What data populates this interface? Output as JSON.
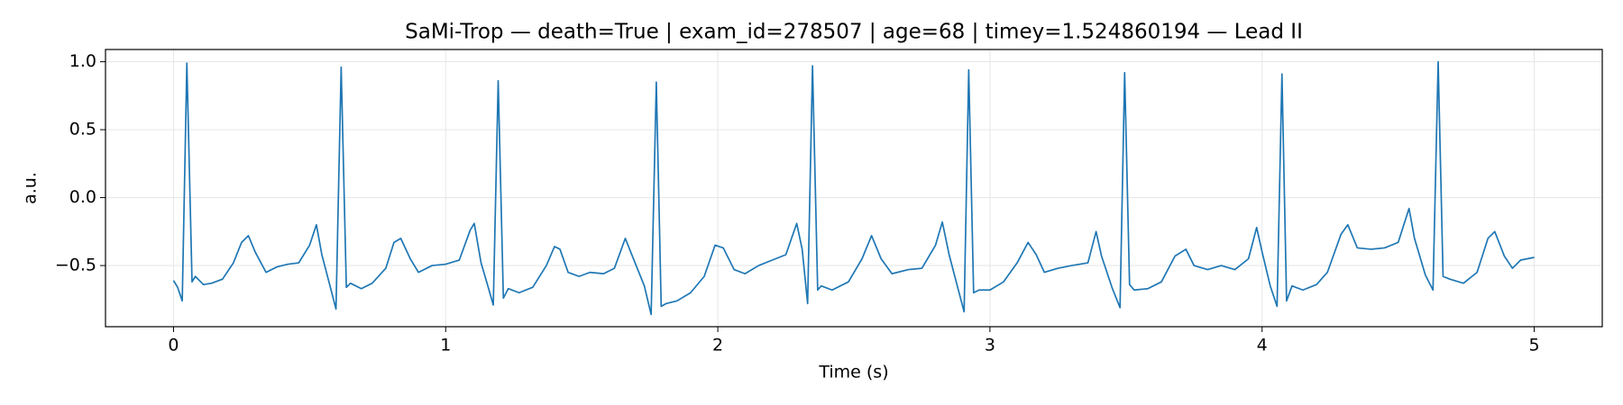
{
  "chart_data": {
    "type": "line",
    "title": "SaMi-Trop — death=True | exam_id=278507 | age=68 | timey=1.524860194 — Lead II",
    "x_label": "Time (s)",
    "y_label": "a.u.",
    "color": "#1f77b4",
    "grid": true,
    "xlim": [
      -0.25,
      5.25
    ],
    "ylim": [
      -0.95,
      1.09
    ],
    "xticks": [
      0,
      1,
      2,
      3,
      4,
      5
    ],
    "yticks": [
      {
        "value": -0.5,
        "label": "−0.5"
      },
      {
        "value": 0,
        "label": "0.0"
      },
      0.5,
      {
        "value": 1,
        "label": "1.0"
      }
    ],
    "x": [
      0.0,
      0.015,
      0.032,
      0.049,
      0.068,
      0.08,
      0.11,
      0.14,
      0.18,
      0.22,
      0.25,
      0.275,
      0.3,
      0.34,
      0.38,
      0.42,
      0.46,
      0.5,
      0.525,
      0.545,
      0.575,
      0.597,
      0.616,
      0.635,
      0.65,
      0.69,
      0.73,
      0.78,
      0.81,
      0.835,
      0.87,
      0.9,
      0.95,
      1.0,
      1.05,
      1.09,
      1.105,
      1.13,
      1.155,
      1.175,
      1.193,
      1.212,
      1.23,
      1.27,
      1.32,
      1.37,
      1.4,
      1.42,
      1.45,
      1.49,
      1.53,
      1.58,
      1.62,
      1.66,
      1.69,
      1.73,
      1.755,
      1.774,
      1.792,
      1.81,
      1.85,
      1.9,
      1.95,
      1.99,
      2.02,
      2.06,
      2.1,
      2.15,
      2.2,
      2.25,
      2.29,
      2.31,
      2.33,
      2.348,
      2.367,
      2.38,
      2.42,
      2.48,
      2.53,
      2.565,
      2.6,
      2.64,
      2.7,
      2.75,
      2.8,
      2.825,
      2.85,
      2.88,
      2.905,
      2.922,
      2.94,
      2.96,
      3.0,
      3.05,
      3.1,
      3.14,
      3.17,
      3.2,
      3.25,
      3.3,
      3.36,
      3.39,
      3.41,
      3.45,
      3.478,
      3.495,
      3.513,
      3.53,
      3.58,
      3.63,
      3.68,
      3.72,
      3.75,
      3.8,
      3.85,
      3.9,
      3.95,
      3.98,
      4.0,
      4.03,
      4.055,
      4.073,
      4.09,
      4.11,
      4.15,
      4.2,
      4.24,
      4.29,
      4.315,
      4.35,
      4.4,
      4.45,
      4.5,
      4.54,
      4.56,
      4.6,
      4.628,
      4.647,
      4.665,
      4.69,
      4.74,
      4.79,
      4.83,
      4.855,
      4.89,
      4.92,
      4.95,
      5.0
    ],
    "values": [
      -0.61,
      -0.66,
      -0.76,
      0.99,
      -0.62,
      -0.58,
      -0.64,
      -0.63,
      -0.6,
      -0.48,
      -0.33,
      -0.28,
      -0.4,
      -0.55,
      -0.51,
      -0.49,
      -0.48,
      -0.35,
      -0.2,
      -0.42,
      -0.65,
      -0.82,
      0.96,
      -0.66,
      -0.63,
      -0.67,
      -0.63,
      -0.52,
      -0.33,
      -0.3,
      -0.45,
      -0.55,
      -0.5,
      -0.49,
      -0.46,
      -0.24,
      -0.19,
      -0.48,
      -0.65,
      -0.79,
      0.86,
      -0.74,
      -0.67,
      -0.7,
      -0.66,
      -0.5,
      -0.36,
      -0.38,
      -0.55,
      -0.58,
      -0.55,
      -0.56,
      -0.52,
      -0.3,
      -0.45,
      -0.65,
      -0.86,
      0.85,
      -0.8,
      -0.78,
      -0.76,
      -0.7,
      -0.58,
      -0.35,
      -0.37,
      -0.53,
      -0.56,
      -0.5,
      -0.46,
      -0.42,
      -0.19,
      -0.38,
      -0.78,
      0.97,
      -0.68,
      -0.65,
      -0.68,
      -0.62,
      -0.45,
      -0.28,
      -0.45,
      -0.56,
      -0.53,
      -0.52,
      -0.35,
      -0.18,
      -0.42,
      -0.65,
      -0.84,
      0.94,
      -0.7,
      -0.68,
      -0.68,
      -0.62,
      -0.48,
      -0.33,
      -0.42,
      -0.55,
      -0.52,
      -0.5,
      -0.48,
      -0.25,
      -0.43,
      -0.67,
      -0.81,
      0.92,
      -0.64,
      -0.68,
      -0.67,
      -0.62,
      -0.43,
      -0.38,
      -0.5,
      -0.53,
      -0.5,
      -0.53,
      -0.45,
      -0.22,
      -0.4,
      -0.65,
      -0.8,
      0.91,
      -0.76,
      -0.65,
      -0.68,
      -0.64,
      -0.55,
      -0.27,
      -0.2,
      -0.37,
      -0.38,
      -0.37,
      -0.33,
      -0.08,
      -0.3,
      -0.57,
      -0.68,
      1.0,
      -0.58,
      -0.6,
      -0.63,
      -0.55,
      -0.3,
      -0.25,
      -0.43,
      -0.52,
      -0.46,
      -0.44
    ]
  }
}
